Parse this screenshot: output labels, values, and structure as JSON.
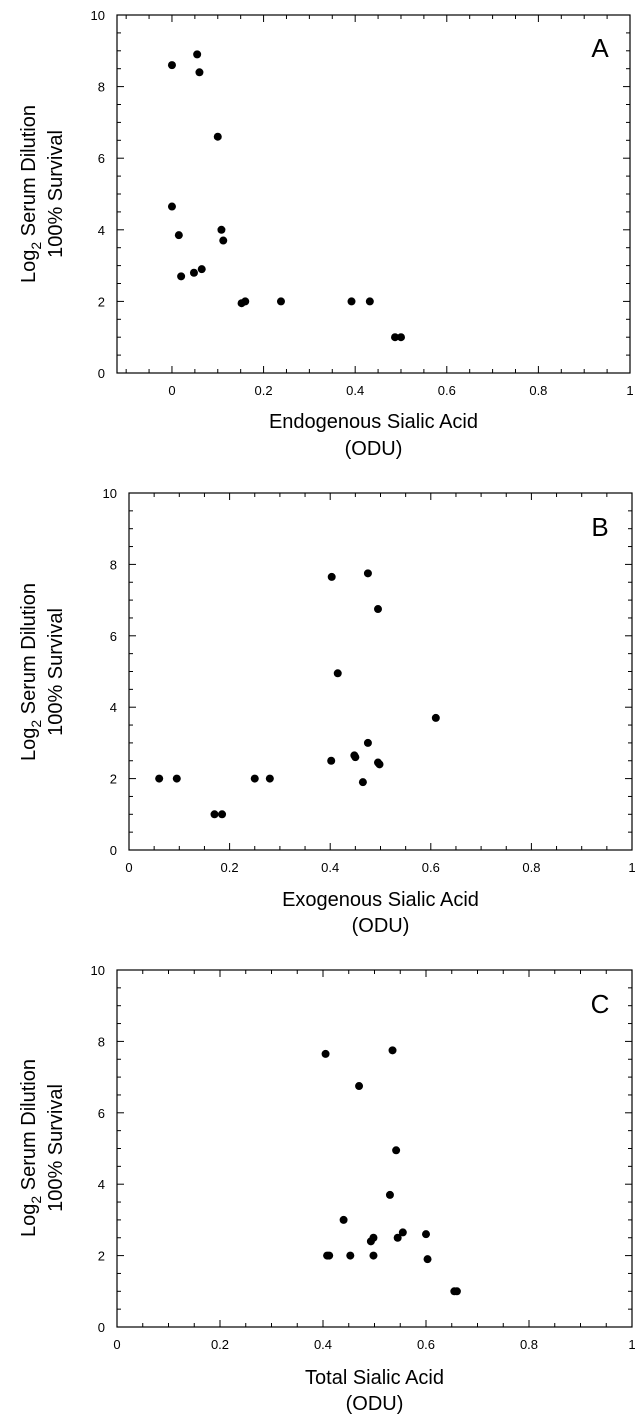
{
  "chart_data": [
    {
      "type": "scatter",
      "panel_label": "A",
      "xlabel": "Endogenous Sialic Acid",
      "xunit": "(ODU)",
      "ylabel_prefix": "Log",
      "ylabel_sub": "2",
      "ylabel_rest": " Serum Dilution",
      "ylabel_line2": "100% Survival",
      "xlim": [
        -0.12,
        1.0
      ],
      "ylim": [
        0,
        10
      ],
      "xticks": [
        0,
        0.2,
        0.4,
        0.6,
        0.8,
        1
      ],
      "xtick_labels": [
        "0",
        "0.2",
        "0.4",
        "0.6",
        "0.8",
        "1"
      ],
      "yticks": [
        0,
        2,
        4,
        6,
        8,
        10
      ],
      "ytick_labels": [
        "0",
        "2",
        "4",
        "6",
        "8",
        "10"
      ],
      "grid": false,
      "color": "#000000",
      "points": [
        {
          "x": 0.0,
          "y": 8.6
        },
        {
          "x": 0.055,
          "y": 8.9
        },
        {
          "x": 0.06,
          "y": 8.4
        },
        {
          "x": 0.1,
          "y": 6.6
        },
        {
          "x": 0.0,
          "y": 4.65
        },
        {
          "x": 0.015,
          "y": 3.85
        },
        {
          "x": 0.108,
          "y": 4.0
        },
        {
          "x": 0.112,
          "y": 3.7
        },
        {
          "x": 0.02,
          "y": 2.7
        },
        {
          "x": 0.048,
          "y": 2.8
        },
        {
          "x": 0.065,
          "y": 2.9
        },
        {
          "x": 0.152,
          "y": 1.95
        },
        {
          "x": 0.16,
          "y": 2.0
        },
        {
          "x": 0.238,
          "y": 2.0
        },
        {
          "x": 0.392,
          "y": 2.0
        },
        {
          "x": 0.432,
          "y": 2.0
        },
        {
          "x": 0.487,
          "y": 1.0
        },
        {
          "x": 0.5,
          "y": 1.0
        }
      ]
    },
    {
      "type": "scatter",
      "panel_label": "B",
      "xlabel": "Exogenous Sialic Acid",
      "xunit": "(ODU)",
      "ylabel_prefix": "Log",
      "ylabel_sub": "2",
      "ylabel_rest": " Serum Dilution",
      "ylabel_line2": "100% Survival",
      "xlim": [
        0,
        1.0
      ],
      "ylim": [
        0,
        10
      ],
      "xticks": [
        0,
        0.2,
        0.4,
        0.6,
        0.8,
        1
      ],
      "xtick_labels": [
        "0",
        "0.2",
        "0.4",
        "0.6",
        "0.8",
        "1"
      ],
      "yticks": [
        0,
        2,
        4,
        6,
        8,
        10
      ],
      "ytick_labels": [
        "0",
        "2",
        "4",
        "6",
        "8",
        "10"
      ],
      "grid": false,
      "color": "#000000",
      "points": [
        {
          "x": 0.06,
          "y": 2.0
        },
        {
          "x": 0.095,
          "y": 2.0
        },
        {
          "x": 0.17,
          "y": 1.0
        },
        {
          "x": 0.185,
          "y": 1.0
        },
        {
          "x": 0.25,
          "y": 2.0
        },
        {
          "x": 0.28,
          "y": 2.0
        },
        {
          "x": 0.403,
          "y": 7.65
        },
        {
          "x": 0.475,
          "y": 7.75
        },
        {
          "x": 0.495,
          "y": 6.75
        },
        {
          "x": 0.415,
          "y": 4.95
        },
        {
          "x": 0.61,
          "y": 3.7
        },
        {
          "x": 0.402,
          "y": 2.5
        },
        {
          "x": 0.448,
          "y": 2.65
        },
        {
          "x": 0.45,
          "y": 2.6
        },
        {
          "x": 0.475,
          "y": 3.0
        },
        {
          "x": 0.465,
          "y": 1.9
        },
        {
          "x": 0.495,
          "y": 2.45
        },
        {
          "x": 0.498,
          "y": 2.4
        }
      ]
    },
    {
      "type": "scatter",
      "panel_label": "C",
      "xlabel": "Total Sialic Acid",
      "xunit": "(ODU)",
      "ylabel_prefix": "Log",
      "ylabel_sub": "2",
      "ylabel_rest": " Serum Dilution",
      "ylabel_line2": "100% Survival",
      "xlim": [
        0,
        1.0
      ],
      "ylim": [
        0,
        10
      ],
      "xticks": [
        0,
        0.2,
        0.4,
        0.6,
        0.8,
        1
      ],
      "xtick_labels": [
        "0",
        "0.2",
        "0.4",
        "0.6",
        "0.8",
        "1"
      ],
      "yticks": [
        0,
        2,
        4,
        6,
        8,
        10
      ],
      "ytick_labels": [
        "0",
        "2",
        "4",
        "6",
        "8",
        "10"
      ],
      "grid": false,
      "color": "#000000",
      "points": [
        {
          "x": 0.405,
          "y": 7.65
        },
        {
          "x": 0.535,
          "y": 7.75
        },
        {
          "x": 0.47,
          "y": 6.75
        },
        {
          "x": 0.542,
          "y": 4.95
        },
        {
          "x": 0.53,
          "y": 3.7
        },
        {
          "x": 0.44,
          "y": 3.0
        },
        {
          "x": 0.493,
          "y": 2.4
        },
        {
          "x": 0.498,
          "y": 2.5
        },
        {
          "x": 0.545,
          "y": 2.5
        },
        {
          "x": 0.555,
          "y": 2.65
        },
        {
          "x": 0.6,
          "y": 2.6
        },
        {
          "x": 0.408,
          "y": 2.0
        },
        {
          "x": 0.412,
          "y": 2.0
        },
        {
          "x": 0.453,
          "y": 2.0
        },
        {
          "x": 0.498,
          "y": 2.0
        },
        {
          "x": 0.603,
          "y": 1.9
        },
        {
          "x": 0.655,
          "y": 1.0
        },
        {
          "x": 0.66,
          "y": 1.0
        }
      ]
    }
  ]
}
